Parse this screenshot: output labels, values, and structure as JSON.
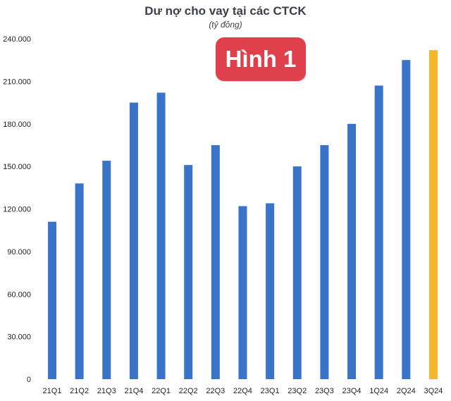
{
  "header": {
    "title": "Dư nợ cho vay tại các CTCK",
    "subtitle": "(tỷ đồng)",
    "badge": "Hình 1"
  },
  "colors": {
    "bar": "#3a74c8",
    "highlight": "#f5b82a",
    "badge": "#e0404c"
  },
  "chart_data": {
    "type": "bar",
    "title": "Dư nợ cho vay tại các CTCK",
    "subtitle": "(tỷ đồng)",
    "xlabel": "",
    "ylabel": "",
    "grid": false,
    "ylim": [
      0,
      240000
    ],
    "yticks": [
      0,
      30000,
      60000,
      90000,
      120000,
      150000,
      180000,
      210000,
      240000
    ],
    "ytick_labels": [
      "0",
      "30.000",
      "60.000",
      "90.000",
      "120.000",
      "150.000",
      "180.000",
      "210.000",
      "240.000"
    ],
    "categories": [
      "21Q1",
      "21Q2",
      "21Q3",
      "21Q4",
      "22Q1",
      "22Q2",
      "22Q3",
      "22Q4",
      "23Q1",
      "23Q2",
      "23Q3",
      "23Q4",
      "1Q24",
      "2Q24",
      "3Q24"
    ],
    "values": [
      111000,
      138000,
      154000,
      195000,
      202000,
      151000,
      165000,
      122000,
      124000,
      150000,
      165000,
      180000,
      207000,
      225000,
      232000
    ],
    "highlight_index": 14
  }
}
